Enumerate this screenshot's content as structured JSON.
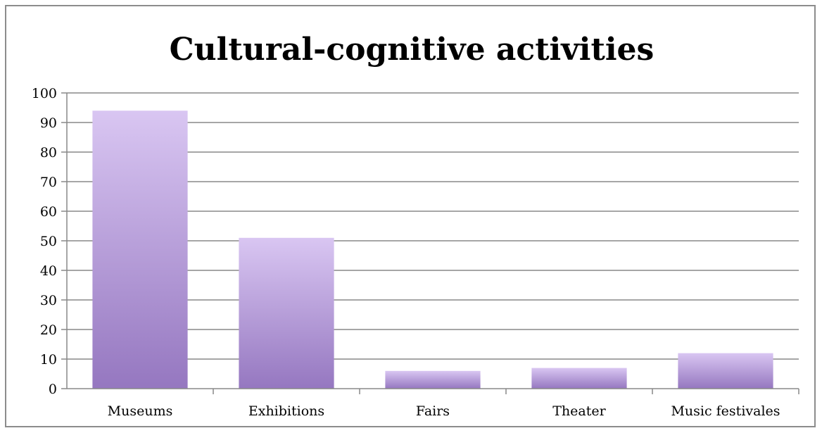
{
  "chart_data": {
    "type": "bar",
    "title": "Cultural-cognitive activities",
    "categories": [
      "Museums",
      "Exhibitions",
      "Fairs",
      "Theater",
      "Music festivales"
    ],
    "values": [
      94,
      51,
      6,
      7,
      12
    ],
    "ylim": [
      0,
      100
    ],
    "yticks": [
      0,
      10,
      20,
      30,
      40,
      50,
      60,
      70,
      80,
      90,
      100
    ],
    "grid": true,
    "legend": "none",
    "colors": {
      "bar_top": "#d9c6f2",
      "bar_bottom": "#9577c0",
      "grid": "#888888"
    }
  }
}
